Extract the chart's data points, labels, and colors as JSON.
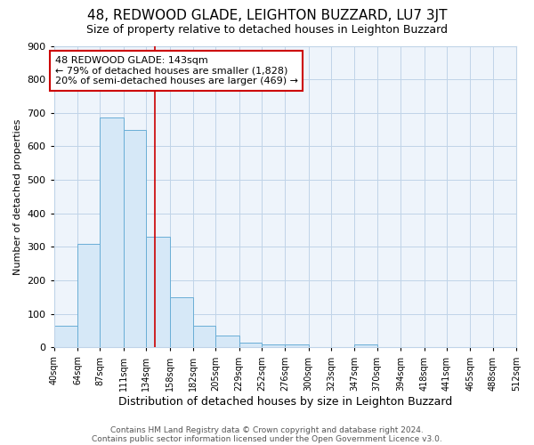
{
  "title": "48, REDWOOD GLADE, LEIGHTON BUZZARD, LU7 3JT",
  "subtitle": "Size of property relative to detached houses in Leighton Buzzard",
  "xlabel": "Distribution of detached houses by size in Leighton Buzzard",
  "ylabel": "Number of detached properties",
  "footer_line1": "Contains HM Land Registry data © Crown copyright and database right 2024.",
  "footer_line2": "Contains public sector information licensed under the Open Government Licence v3.0.",
  "bar_edges": [
    40,
    64,
    87,
    111,
    134,
    158,
    182,
    205,
    229,
    252,
    276,
    300,
    323,
    347,
    370,
    394,
    418,
    441,
    465,
    488,
    512
  ],
  "bar_heights": [
    65,
    310,
    685,
    650,
    330,
    150,
    65,
    35,
    15,
    10,
    8,
    0,
    0,
    8,
    0,
    0,
    0,
    0,
    0,
    0
  ],
  "bar_color": "#d6e8f7",
  "bar_edge_color": "#6aaed6",
  "grid_color": "#c0d4e8",
  "bg_color": "#e8f0f8",
  "plot_bg_color": "#eef4fb",
  "red_line_x": 143,
  "annotation_text_line1": "48 REDWOOD GLADE: 143sqm",
  "annotation_text_line2": "← 79% of detached houses are smaller (1,828)",
  "annotation_text_line3": "20% of semi-detached houses are larger (469) →",
  "annotation_box_color": "#cc0000",
  "ylim": [
    0,
    900
  ],
  "yticks": [
    0,
    100,
    200,
    300,
    400,
    500,
    600,
    700,
    800,
    900
  ],
  "title_fontsize": 11,
  "subtitle_fontsize": 9,
  "ylabel_fontsize": 8,
  "xlabel_fontsize": 9,
  "tick_fontsize": 8,
  "footer_fontsize": 6.5
}
